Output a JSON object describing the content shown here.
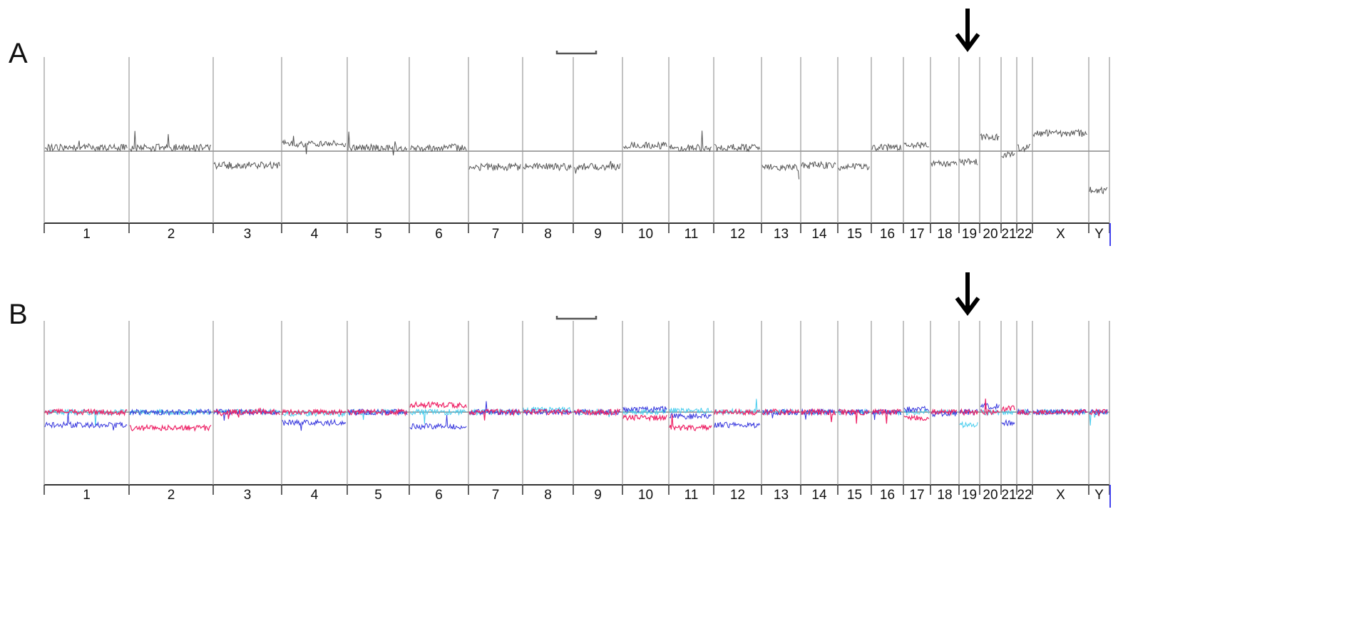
{
  "panels": [
    {
      "label": "A",
      "chromosomes": [
        "1",
        "2",
        "3",
        "4",
        "5",
        "6",
        "7",
        "8",
        "9",
        "10",
        "11",
        "12",
        "13",
        "14",
        "15",
        "16",
        "17",
        "18",
        "19",
        "20",
        "21",
        "22",
        "X",
        "Y"
      ]
    },
    {
      "label": "B",
      "chromosomes": [
        "1",
        "2",
        "3",
        "4",
        "5",
        "6",
        "7",
        "8",
        "9",
        "10",
        "11",
        "12",
        "13",
        "14",
        "15",
        "16",
        "17",
        "18",
        "19",
        "20",
        "21",
        "22",
        "X",
        "Y"
      ]
    }
  ]
}
